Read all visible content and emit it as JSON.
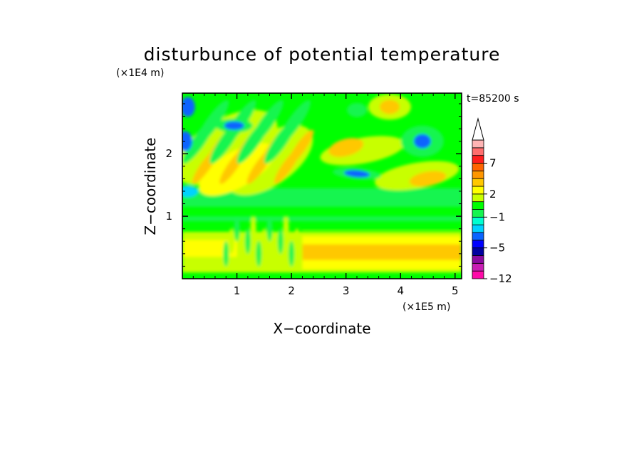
{
  "chart_data": {
    "type": "heatmap",
    "title": "disturbunce of potential temperature",
    "xlabel": "X−coordinate",
    "ylabel": "Z−coordinate",
    "x_unit": "(×1E5 m)",
    "y_unit": "(×1E4 m)",
    "time_label": "t=85200 s",
    "xlim": [
      0,
      5.12
    ],
    "ylim": [
      0,
      2.97
    ],
    "x_ticks": [
      1,
      2,
      3,
      4,
      5
    ],
    "x_tick_labels": [
      "1",
      "2",
      "3",
      "4",
      "5"
    ],
    "y_ticks": [
      1,
      2
    ],
    "y_tick_labels": [
      "1",
      "2"
    ],
    "colorbar": {
      "levels": [
        -12,
        -10,
        -8,
        -6,
        -5,
        -4,
        -3,
        -2,
        -1,
        0,
        1,
        2,
        3,
        4,
        5,
        7,
        9,
        11
      ],
      "tick_labels": [
        {
          "value": 7,
          "label": "7"
        },
        {
          "value": 2,
          "label": "2"
        },
        {
          "value": -1,
          "label": "−1"
        },
        {
          "value": -5,
          "label": "−5"
        },
        {
          "value": -12,
          "label": "−12"
        }
      ],
      "colors": [
        "#ff0aa8",
        "#c81eb4",
        "#8c0aa0",
        "#0000a0",
        "#0000ff",
        "#0a64ff",
        "#00d2ff",
        "#00ffd0",
        "#14f550",
        "#00ff00",
        "#c8ff00",
        "#ffff00",
        "#ffc800",
        "#ff9600",
        "#ff6400",
        "#ff1e1e",
        "#ff6e6e",
        "#ffb4b4"
      ],
      "extend": "max"
    },
    "grid": false,
    "field_description": "2D contour field; waves aloft in upper-left; warm layer near surface right of x=2"
  }
}
